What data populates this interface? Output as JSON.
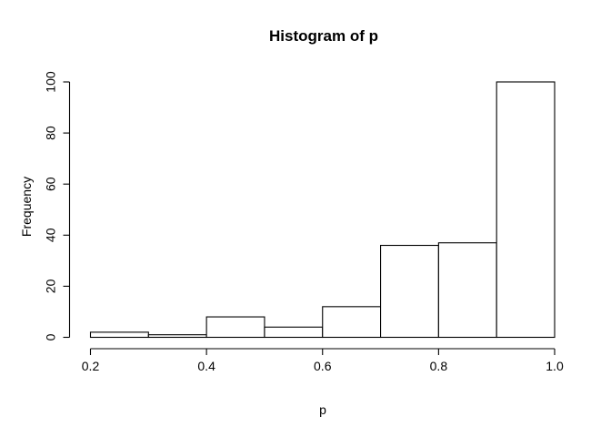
{
  "chart_data": {
    "type": "bar",
    "subtype": "histogram",
    "title": "Histogram of p",
    "xlabel": "p",
    "ylabel": "Frequency",
    "bin_edges": [
      0.2,
      0.3,
      0.4,
      0.5,
      0.6,
      0.7,
      0.8,
      0.9,
      1.0
    ],
    "counts": [
      2,
      1,
      8,
      4,
      12,
      36,
      37,
      100
    ],
    "x_ticks": [
      0.2,
      0.4,
      0.6,
      0.8,
      1.0
    ],
    "x_tick_labels": [
      "0.2",
      "0.4",
      "0.6",
      "0.8",
      "1.0"
    ],
    "y_ticks": [
      0,
      20,
      40,
      60,
      80,
      100
    ],
    "y_tick_labels": [
      "0",
      "20",
      "40",
      "60",
      "80",
      "100"
    ],
    "xlim": [
      0.2,
      1.0
    ],
    "ylim": [
      0,
      100
    ],
    "grid": "off",
    "legend": "none",
    "bar_fill": "#ffffff",
    "bar_stroke": "#000000",
    "axis_color": "#000000",
    "text_color": "#000000",
    "background": "#ffffff"
  }
}
